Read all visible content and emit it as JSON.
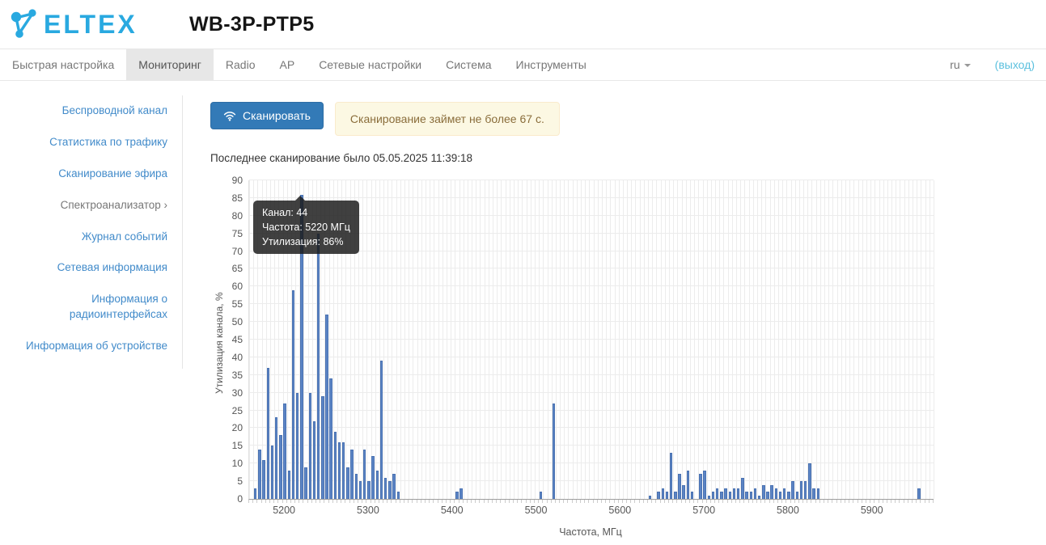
{
  "header": {
    "logo_text": "ELTEX",
    "device_title": "WB-3P-PTP5"
  },
  "nav": {
    "tabs": [
      {
        "label": "Быстрая настройка"
      },
      {
        "label": "Мониторинг"
      },
      {
        "label": "Radio"
      },
      {
        "label": "AP"
      },
      {
        "label": "Сетевые настройки"
      },
      {
        "label": "Система"
      },
      {
        "label": "Инструменты"
      }
    ],
    "lang": "ru",
    "logout_label": "(выход)"
  },
  "sidebar": {
    "items": [
      {
        "label": "Беспроводной канал"
      },
      {
        "label": "Статистика по трафику"
      },
      {
        "label": "Сканирование эфира"
      },
      {
        "label": "Спектроанализатор ›"
      },
      {
        "label": "Журнал событий"
      },
      {
        "label": "Сетевая информация"
      },
      {
        "label": "Информация о радиоинтерфейсах"
      },
      {
        "label": "Информация об устройстве"
      }
    ]
  },
  "main": {
    "scan_button_label": "Сканировать",
    "scan_alert": "Сканирование займет не более 67 с.",
    "last_scan_text": "Последнее сканирование было 05.05.2025 11:39:18"
  },
  "tooltip": {
    "lines": [
      "Канал: 44",
      "Частота: 5220 МГц",
      "Утилизация: 86%"
    ],
    "channel": "44",
    "frequency_mhz": 5220,
    "utilization_pct": 86
  },
  "chart_data": {
    "type": "bar",
    "title": "",
    "xlabel": "Частота, МГц",
    "ylabel": "Утилизация канала, %",
    "xlim": [
      5157.5,
      5972.5
    ],
    "ylim": [
      0,
      90
    ],
    "y_tick_step": 5,
    "minor_step": 5,
    "x_major_ticks": [
      5200,
      5300,
      5400,
      5500,
      5600,
      5700,
      5800,
      5900
    ],
    "grid": true,
    "bar_color": "#5b84c4",
    "series": [
      {
        "name": "Утилизация канала, %",
        "x": [
          5165,
          5170,
          5175,
          5180,
          5185,
          5190,
          5195,
          5200,
          5205,
          5210,
          5215,
          5220,
          5225,
          5230,
          5235,
          5240,
          5245,
          5250,
          5255,
          5260,
          5265,
          5270,
          5275,
          5280,
          5285,
          5290,
          5295,
          5300,
          5305,
          5310,
          5315,
          5320,
          5325,
          5330,
          5335,
          5405,
          5410,
          5505,
          5520,
          5635,
          5645,
          5650,
          5655,
          5660,
          5665,
          5670,
          5675,
          5680,
          5685,
          5695,
          5700,
          5705,
          5710,
          5715,
          5720,
          5725,
          5730,
          5735,
          5740,
          5745,
          5750,
          5755,
          5760,
          5765,
          5770,
          5775,
          5780,
          5785,
          5790,
          5795,
          5800,
          5805,
          5810,
          5815,
          5820,
          5825,
          5830,
          5835,
          5955
        ],
        "values": [
          3,
          14,
          11,
          37,
          15,
          23,
          18,
          27,
          8,
          59,
          30,
          86,
          9,
          30,
          22,
          75,
          29,
          52,
          34,
          19,
          16,
          16,
          9,
          14,
          7,
          5,
          14,
          5,
          12,
          8,
          39,
          6,
          5,
          7,
          2,
          2,
          3,
          2,
          27,
          1,
          2,
          3,
          2,
          13,
          2,
          7,
          4,
          8,
          2,
          7,
          8,
          1,
          2,
          3,
          2,
          3,
          2,
          3,
          3,
          6,
          2,
          2,
          3,
          1,
          4,
          2,
          4,
          3,
          2,
          3,
          2,
          5,
          2,
          5,
          5,
          10,
          3,
          3,
          3
        ]
      }
    ]
  }
}
